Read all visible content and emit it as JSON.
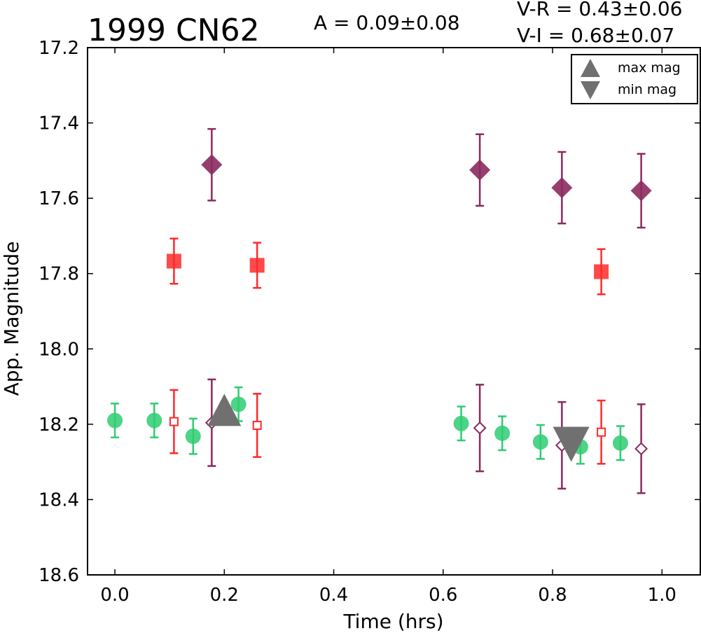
{
  "chart_data": {
    "type": "scatter",
    "title": "1999 CN62",
    "annotations": {
      "amplitude": "A  = 0.09±0.08",
      "v_r": "V-R = 0.43±0.06",
      "v_i": "V-I  = 0.68±0.07"
    },
    "xlabel": "Time (hrs)",
    "ylabel": "App. Magnitude",
    "xlim": [
      -0.05,
      1.07
    ],
    "ylim": [
      18.6,
      17.2
    ],
    "y_inverted": true,
    "x_ticks": [
      0.0,
      0.2,
      0.4,
      0.6,
      0.8,
      1.0
    ],
    "x_tick_labels": [
      "0.0",
      "0.2",
      "0.4",
      "0.6",
      "0.8",
      "1.0"
    ],
    "y_ticks": [
      17.2,
      17.4,
      17.6,
      17.8,
      18.0,
      18.2,
      18.4,
      18.6
    ],
    "y_tick_labels": [
      "17.2",
      "17.4",
      "17.6",
      "17.8",
      "18.0",
      "18.2",
      "18.4",
      "18.6"
    ],
    "grid": false,
    "legend": {
      "placement": "top-right",
      "entries": [
        {
          "label": "max mag",
          "marker": "triangle-up"
        },
        {
          "label": "min mag",
          "marker": "triangle-down"
        }
      ]
    },
    "series": [
      {
        "marker": "circle",
        "filled": true,
        "color": "#2ecc71",
        "x": [
          0.0,
          0.072,
          0.143,
          0.226,
          0.633,
          0.708,
          0.778,
          0.851,
          0.924
        ],
        "y": [
          18.19,
          18.19,
          18.232,
          18.147,
          18.198,
          18.224,
          18.247,
          18.26,
          18.25
        ],
        "err": [
          0.045,
          0.045,
          0.047,
          0.045,
          0.045,
          0.045,
          0.045,
          0.045,
          0.045
        ]
      },
      {
        "marker": "square",
        "filled": true,
        "color": "#ff2a2a",
        "x": [
          0.108,
          0.26,
          0.889
        ],
        "y": [
          17.767,
          17.778,
          17.795
        ],
        "err": [
          0.06,
          0.06,
          0.06
        ]
      },
      {
        "marker": "square",
        "filled": false,
        "color": "#ff2a2a",
        "x": [
          0.108,
          0.26,
          0.889
        ],
        "y": [
          18.193,
          18.203,
          18.221
        ],
        "err": [
          0.084,
          0.084,
          0.084
        ]
      },
      {
        "marker": "diamond",
        "filled": true,
        "color": "#8b2a5e",
        "x": [
          0.177,
          0.667,
          0.817,
          0.962
        ],
        "y": [
          17.511,
          17.525,
          17.572,
          17.58
        ],
        "err": [
          0.095,
          0.095,
          0.095,
          0.098
        ]
      },
      {
        "marker": "diamond",
        "filled": false,
        "color": "#8b2a5e",
        "x": [
          0.177,
          0.667,
          0.817,
          0.962
        ],
        "y": [
          18.196,
          18.21,
          18.256,
          18.265
        ],
        "err": [
          0.115,
          0.115,
          0.115,
          0.118
        ]
      }
    ],
    "max_mag": {
      "x": 0.2,
      "y": 18.175,
      "color": "#707070"
    },
    "min_mag": {
      "x": 0.834,
      "y": 18.255,
      "color": "#707070"
    }
  }
}
